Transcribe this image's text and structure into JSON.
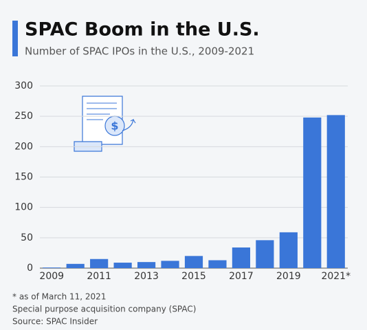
{
  "chart_data": {
    "type": "bar",
    "title": "SPAC Boom in the U.S.",
    "subtitle": "Number of SPAC IPOs in the U.S., 2009-2021",
    "categories": [
      "2009",
      null,
      "2011",
      null,
      "2013",
      null,
      "2015",
      null,
      "2017",
      null,
      "2019",
      null,
      "2021*"
    ],
    "values": [
      1,
      7,
      15,
      9,
      10,
      12,
      20,
      13,
      34,
      46,
      59,
      248,
      252
    ],
    "color": "#3a76d8",
    "ylim": [
      0,
      300
    ],
    "yticks": [
      0,
      50,
      100,
      150,
      200,
      250,
      300
    ],
    "grid": true,
    "footnote": "* as of March 11, 2021",
    "note": "Special purpose acquisition company (SPAC)",
    "source": "Source: SPAC Insider"
  }
}
